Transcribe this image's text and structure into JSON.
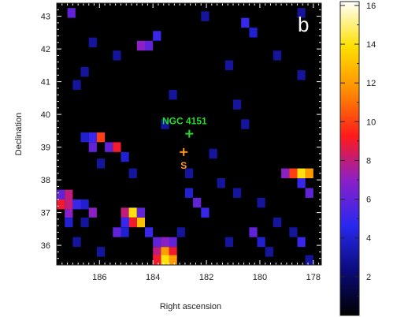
{
  "chart_data": {
    "type": "heatmap",
    "panel_label": "b",
    "xlabel": "Right ascension",
    "ylabel": "Declination",
    "x_reversed": true,
    "xlim": [
      187.6,
      177.7
    ],
    "ylim": [
      35.4,
      43.4
    ],
    "xticks": [
      186,
      184,
      182,
      180,
      178
    ],
    "yticks": [
      36,
      37,
      38,
      39,
      40,
      41,
      42,
      43
    ],
    "grid": false,
    "colorbar": {
      "range": [
        0,
        16.2
      ],
      "ticks": [
        2,
        4,
        6,
        8,
        10,
        12,
        14,
        16
      ],
      "colormap": [
        "#000000",
        "#0b0b7a",
        "#2828f0",
        "#8a20c8",
        "#ff1a1a",
        "#ff8c00",
        "#ffe000",
        "#ffffff"
      ]
    },
    "cell_size_deg": 0.3,
    "cells": [
      [
        187.45,
        37.55,
        6
      ],
      [
        187.15,
        37.55,
        8
      ],
      [
        187.45,
        37.25,
        9
      ],
      [
        187.15,
        37.25,
        8
      ],
      [
        186.85,
        37.25,
        5
      ],
      [
        187.15,
        36.95,
        7
      ],
      [
        186.55,
        37.25,
        4
      ],
      [
        186.25,
        37.0,
        7
      ],
      [
        186.55,
        36.7,
        3
      ],
      [
        187.15,
        36.7,
        4
      ],
      [
        186.55,
        39.3,
        4
      ],
      [
        186.25,
        39.3,
        5
      ],
      [
        185.95,
        39.3,
        10
      ],
      [
        185.65,
        39.0,
        6
      ],
      [
        185.35,
        39.0,
        9
      ],
      [
        185.05,
        38.7,
        4
      ],
      [
        186.25,
        39.0,
        6
      ],
      [
        185.05,
        37.0,
        8
      ],
      [
        184.75,
        37.0,
        14
      ],
      [
        184.45,
        36.7,
        13
      ],
      [
        184.75,
        36.7,
        9
      ],
      [
        184.45,
        37.0,
        6
      ],
      [
        185.05,
        36.7,
        5
      ],
      [
        185.35,
        36.4,
        6
      ],
      [
        185.05,
        36.4,
        4
      ],
      [
        184.15,
        36.4,
        5
      ],
      [
        183.85,
        36.1,
        6
      ],
      [
        183.55,
        36.1,
        7
      ],
      [
        183.25,
        36.1,
        6
      ],
      [
        183.85,
        35.8,
        8
      ],
      [
        183.55,
        35.8,
        12
      ],
      [
        183.25,
        35.8,
        9
      ],
      [
        183.55,
        35.55,
        14
      ],
      [
        183.25,
        35.55,
        12
      ],
      [
        183.85,
        35.55,
        9
      ],
      [
        182.35,
        37.3,
        6
      ],
      [
        182.65,
        37.6,
        4
      ],
      [
        182.05,
        37.0,
        5
      ],
      [
        180.25,
        36.4,
        6
      ],
      [
        179.95,
        36.1,
        4
      ],
      [
        178.45,
        36.1,
        5
      ],
      [
        179.05,
        38.2,
        7
      ],
      [
        178.75,
        38.2,
        10
      ],
      [
        178.45,
        38.2,
        14
      ],
      [
        178.15,
        38.2,
        12
      ],
      [
        178.45,
        37.9,
        5
      ],
      [
        178.15,
        37.6,
        6
      ],
      [
        184.45,
        42.1,
        7
      ],
      [
        184.15,
        42.1,
        6
      ],
      [
        183.85,
        42.4,
        5
      ],
      [
        180.55,
        42.8,
        5
      ],
      [
        180.25,
        42.5,
        4
      ],
      [
        187.05,
        43.1,
        6
      ],
      [
        186.85,
        40.9,
        3
      ],
      [
        186.55,
        41.3,
        3
      ],
      [
        183.25,
        40.6,
        3
      ],
      [
        180.85,
        40.3,
        3
      ],
      [
        180.55,
        39.7,
        3
      ],
      [
        181.75,
        38.8,
        3
      ],
      [
        182.65,
        38.2,
        3
      ],
      [
        181.45,
        37.9,
        3
      ],
      [
        180.85,
        37.6,
        3
      ],
      [
        179.95,
        37.3,
        3
      ],
      [
        179.35,
        36.7,
        3
      ],
      [
        178.75,
        36.4,
        3
      ],
      [
        186.85,
        36.1,
        3
      ],
      [
        185.95,
        35.8,
        3
      ],
      [
        182.95,
        36.4,
        3
      ],
      [
        181.15,
        36.1,
        3
      ],
      [
        179.65,
        35.8,
        3
      ],
      [
        178.15,
        35.55,
        3
      ],
      [
        184.75,
        38.2,
        3
      ],
      [
        185.95,
        38.5,
        3
      ],
      [
        183.55,
        39.7,
        3
      ],
      [
        181.15,
        41.5,
        3
      ],
      [
        179.35,
        41.8,
        3
      ],
      [
        178.45,
        41.2,
        3
      ],
      [
        186.25,
        42.2,
        3
      ],
      [
        185.35,
        41.8,
        3
      ],
      [
        182.05,
        43.0,
        3
      ],
      [
        178.45,
        43.1,
        3
      ]
    ],
    "annotations": [
      {
        "label": "NGC 4151",
        "marker": "+",
        "ra": 182.64,
        "dec": 39.41,
        "color": "#21e021"
      },
      {
        "label": "S",
        "marker": "+",
        "ra": 182.85,
        "dec": 38.85,
        "color": "#ff9a1a"
      }
    ]
  }
}
